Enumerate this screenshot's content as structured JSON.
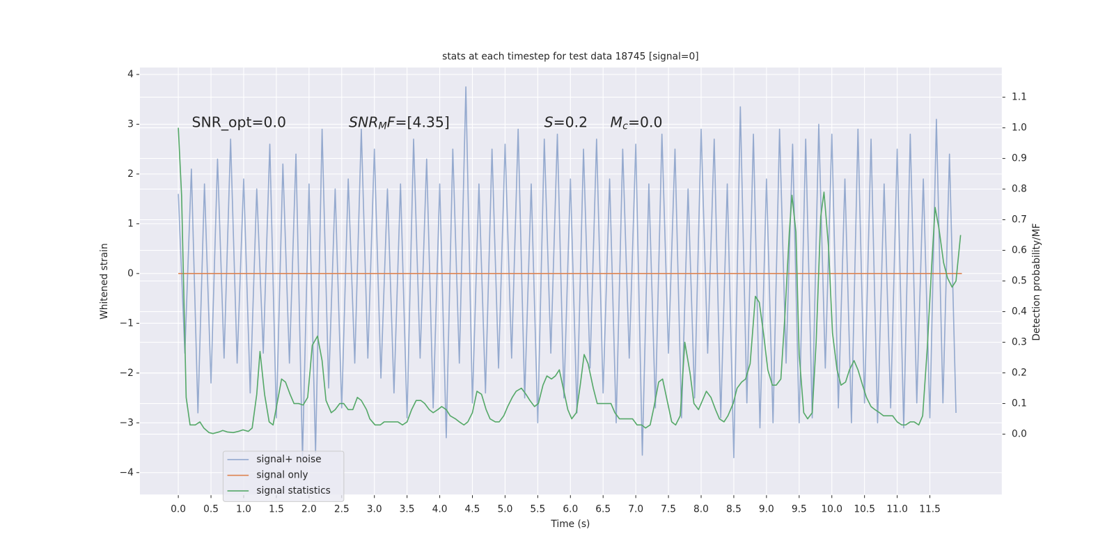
{
  "chart_data": {
    "type": "line",
    "title": "stats at each timestep for test data 18745 [signal=0]",
    "xlabel": "Time (s)",
    "ylabel": "Whitened strain",
    "y2label": "Detection probability/MF",
    "xlim": [
      -0.587,
      12.6
    ],
    "ylim": [
      -4.44,
      4.14
    ],
    "y2lim": [
      -0.197,
      1.197
    ],
    "xticks": [
      {
        "value": 0,
        "label": "0.0"
      },
      {
        "value": 0.5,
        "label": "0.5"
      },
      {
        "value": 1,
        "label": "1.0"
      },
      {
        "value": 1.5,
        "label": "1.5"
      },
      {
        "value": 2,
        "label": "2.0"
      },
      {
        "value": 2.5,
        "label": "2.5"
      },
      {
        "value": 3,
        "label": "3.0"
      },
      {
        "value": 3.5,
        "label": "3.5"
      },
      {
        "value": 4,
        "label": "4.0"
      },
      {
        "value": 4.5,
        "label": "4.5"
      },
      {
        "value": 5,
        "label": "5.0"
      },
      {
        "value": 5.5,
        "label": "5.5"
      },
      {
        "value": 6,
        "label": "6.0"
      },
      {
        "value": 6.5,
        "label": "6.5"
      },
      {
        "value": 7,
        "label": "7.0"
      },
      {
        "value": 7.5,
        "label": "7.5"
      },
      {
        "value": 8,
        "label": "8.0"
      },
      {
        "value": 8.5,
        "label": "8.5"
      },
      {
        "value": 9,
        "label": "9.0"
      },
      {
        "value": 9.5,
        "label": "9.5"
      },
      {
        "value": 10,
        "label": "10.0"
      },
      {
        "value": 10.5,
        "label": "10.5"
      },
      {
        "value": 11,
        "label": "11.0"
      },
      {
        "value": 11.5,
        "label": "11.5"
      }
    ],
    "yticks": [
      {
        "value": -4,
        "label": "−4"
      },
      {
        "value": -3,
        "label": "−3"
      },
      {
        "value": -2,
        "label": "−2"
      },
      {
        "value": -1,
        "label": "−1"
      },
      0,
      1,
      2,
      3,
      4
    ],
    "y2ticks": [
      {
        "value": 0,
        "label": "0.0"
      },
      {
        "value": 0.1,
        "label": "0.1"
      },
      {
        "value": 0.2,
        "label": "0.2"
      },
      {
        "value": 0.3,
        "label": "0.3"
      },
      {
        "value": 0.4,
        "label": "0.4"
      },
      {
        "value": 0.5,
        "label": "0.5"
      },
      {
        "value": 0.6,
        "label": "0.6"
      },
      {
        "value": 0.7,
        "label": "0.7"
      },
      {
        "value": 0.8,
        "label": "0.8"
      },
      {
        "value": 0.9,
        "label": "0.9"
      },
      {
        "value": 1,
        "label": "1.0"
      },
      {
        "value": 1.1,
        "label": "1.1"
      }
    ],
    "grid": true,
    "legend": "lower left",
    "annotations": [
      [
        {
          "text": "SNR_opt=0.0"
        }
      ],
      [
        {
          "text": "SNR",
          "style": "italic"
        },
        {
          "text": "M",
          "style": "italic-sub"
        },
        {
          "text": "F",
          "style": "italic"
        },
        {
          "text": "=[4.35]"
        }
      ],
      [
        {
          "text": "S",
          "style": "italic"
        },
        {
          "text": "=0.2"
        }
      ],
      [
        {
          "text": "M",
          "style": "italic"
        },
        {
          "text": "c",
          "style": "italic-sub"
        },
        {
          "text": "=0.0"
        }
      ]
    ],
    "series": [
      {
        "name": "signal+ noise",
        "color": "#4c72b0",
        "alpha": 0.55,
        "x": [
          0,
          0.1,
          0.2,
          0.3,
          0.4,
          0.5,
          0.6,
          0.7,
          0.8,
          0.9,
          1,
          1.1,
          1.2,
          1.3,
          1.4,
          1.5,
          1.6,
          1.7,
          1.8,
          1.9,
          2,
          2.1,
          2.2,
          2.3,
          2.4,
          2.5,
          2.6,
          2.7,
          2.8,
          2.9,
          3,
          3.1,
          3.2,
          3.3,
          3.4,
          3.5,
          3.6,
          3.7,
          3.8,
          3.9,
          4,
          4.1,
          4.2,
          4.3,
          4.4,
          4.5,
          4.6,
          4.7,
          4.8,
          4.9,
          5,
          5.1,
          5.2,
          5.3,
          5.4,
          5.5,
          5.6,
          5.7,
          5.8,
          5.9,
          6,
          6.1,
          6.2,
          6.3,
          6.4,
          6.5,
          6.6,
          6.7,
          6.8,
          6.9,
          7,
          7.1,
          7.2,
          7.3,
          7.4,
          7.5,
          7.6,
          7.7,
          7.8,
          7.9,
          8,
          8.1,
          8.2,
          8.3,
          8.4,
          8.5,
          8.6,
          8.7,
          8.8,
          8.9,
          9,
          9.1,
          9.2,
          9.3,
          9.4,
          9.5,
          9.6,
          9.7,
          9.8,
          9.9,
          10,
          10.1,
          10.2,
          10.3,
          10.4,
          10.5,
          10.6,
          10.7,
          10.8,
          10.9,
          11,
          11.1,
          11.2,
          11.3,
          11.4,
          11.5,
          11.6,
          11.7,
          11.8,
          11.9
        ],
        "values": [
          1.6,
          -1.6,
          2.1,
          -2.8,
          1.8,
          -2.2,
          2.3,
          -1.7,
          2.7,
          -1.8,
          1.9,
          -2.4,
          1.7,
          -1.6,
          2.6,
          -2.9,
          2.2,
          -1.8,
          2.4,
          -3.7,
          1.8,
          -3.6,
          2.9,
          -2.3,
          1.7,
          -2.7,
          1.9,
          -1.8,
          2.9,
          -1.7,
          2.5,
          -2.1,
          1.7,
          -2.4,
          1.8,
          -2.9,
          2.7,
          -1.7,
          2.3,
          -2.7,
          1.8,
          -3.3,
          2.5,
          -1.8,
          3.75,
          -2.6,
          1.8,
          -2.4,
          2.5,
          -1.9,
          2.6,
          -1.7,
          2.9,
          -2.5,
          1.8,
          -3.0,
          2.7,
          -1.6,
          2.8,
          -2.5,
          1.9,
          -2.8,
          2.5,
          -1.9,
          2.7,
          -2.4,
          1.9,
          -3.0,
          2.5,
          -1.7,
          2.6,
          -3.65,
          1.8,
          -2.7,
          2.8,
          -1.6,
          2.5,
          -2.9,
          1.7,
          -2.5,
          2.9,
          -1.6,
          2.7,
          -2.9,
          1.8,
          -3.7,
          3.35,
          -2.6,
          2.8,
          -3.1,
          1.9,
          -3.0,
          2.9,
          -1.8,
          2.6,
          -3.0,
          2.7,
          -2.9,
          3.0,
          -1.9,
          2.8,
          -2.7,
          1.9,
          -3.0,
          2.9,
          -2.6,
          2.7,
          -3.0,
          1.8,
          -2.7,
          2.5,
          -3.1,
          2.8,
          -2.6,
          1.9,
          -2.9,
          3.1,
          -2.6,
          2.4,
          -2.8
        ]
      },
      {
        "name": "signal only",
        "color": "#dd8452",
        "alpha": 1,
        "x": [
          0,
          11.99
        ],
        "values": [
          0,
          0
        ]
      },
      {
        "name": "signal statistics",
        "color": "#55a868",
        "alpha": 1,
        "axis": "y2",
        "x": [
          0,
          0.05,
          0.12,
          0.18,
          0.26,
          0.33,
          0.39,
          0.47,
          0.53,
          0.62,
          0.68,
          0.75,
          0.84,
          0.92,
          0.99,
          1.07,
          1.13,
          1.2,
          1.25,
          1.32,
          1.39,
          1.45,
          1.52,
          1.58,
          1.64,
          1.71,
          1.77,
          1.84,
          1.91,
          1.98,
          2.05,
          2.13,
          2.2,
          2.26,
          2.34,
          2.4,
          2.47,
          2.53,
          2.6,
          2.67,
          2.74,
          2.8,
          2.88,
          2.93,
          3.01,
          3.09,
          3.15,
          3.23,
          3.29,
          3.36,
          3.43,
          3.5,
          3.57,
          3.64,
          3.71,
          3.77,
          3.84,
          3.9,
          3.97,
          4.03,
          4.1,
          4.16,
          4.24,
          4.3,
          4.37,
          4.43,
          4.5,
          4.57,
          4.64,
          4.71,
          4.77,
          4.85,
          4.91,
          4.98,
          5.04,
          5.11,
          5.17,
          5.25,
          5.32,
          5.38,
          5.45,
          5.51,
          5.58,
          5.64,
          5.71,
          5.77,
          5.83,
          5.89,
          5.96,
          6.02,
          6.09,
          6.15,
          6.21,
          6.27,
          6.35,
          6.41,
          6.48,
          6.54,
          6.62,
          6.68,
          6.75,
          6.82,
          6.88,
          6.95,
          7.02,
          7.09,
          7.15,
          7.22,
          7.28,
          7.35,
          7.41,
          7.48,
          7.55,
          7.61,
          7.68,
          7.75,
          7.83,
          7.89,
          7.96,
          8.02,
          8.08,
          8.15,
          8.22,
          8.28,
          8.35,
          8.41,
          8.49,
          8.55,
          8.62,
          8.68,
          8.75,
          8.83,
          8.89,
          8.96,
          9.02,
          9.09,
          9.15,
          9.22,
          9.28,
          9.35,
          9.39,
          9.45,
          9.5,
          9.57,
          9.63,
          9.7,
          9.76,
          9.83,
          9.88,
          9.95,
          10.01,
          10.08,
          10.14,
          10.21,
          10.27,
          10.34,
          10.4,
          10.47,
          10.53,
          10.6,
          10.66,
          10.73,
          10.79,
          10.86,
          10.93,
          11,
          11.07,
          11.13,
          11.2,
          11.26,
          11.33,
          11.39,
          11.46,
          11.52,
          11.58,
          11.64,
          11.71,
          11.77,
          11.84,
          11.9,
          11.97
        ],
        "values": [
          1.0,
          0.78,
          0.12,
          0.03,
          0.03,
          0.04,
          0.02,
          0.005,
          0.002,
          0.007,
          0.012,
          0.007,
          0.005,
          0.009,
          0.014,
          0.009,
          0.02,
          0.13,
          0.27,
          0.13,
          0.04,
          0.03,
          0.11,
          0.18,
          0.17,
          0.13,
          0.1,
          0.1,
          0.095,
          0.12,
          0.29,
          0.32,
          0.24,
          0.11,
          0.07,
          0.08,
          0.1,
          0.1,
          0.08,
          0.08,
          0.12,
          0.11,
          0.08,
          0.05,
          0.03,
          0.03,
          0.04,
          0.04,
          0.04,
          0.04,
          0.03,
          0.04,
          0.08,
          0.11,
          0.11,
          0.1,
          0.08,
          0.07,
          0.08,
          0.09,
          0.08,
          0.06,
          0.05,
          0.04,
          0.03,
          0.04,
          0.07,
          0.14,
          0.13,
          0.08,
          0.05,
          0.04,
          0.04,
          0.06,
          0.09,
          0.12,
          0.14,
          0.15,
          0.13,
          0.11,
          0.09,
          0.1,
          0.16,
          0.19,
          0.18,
          0.19,
          0.21,
          0.15,
          0.08,
          0.05,
          0.07,
          0.16,
          0.26,
          0.23,
          0.15,
          0.1,
          0.1,
          0.1,
          0.1,
          0.07,
          0.05,
          0.05,
          0.05,
          0.05,
          0.03,
          0.03,
          0.02,
          0.03,
          0.09,
          0.17,
          0.18,
          0.11,
          0.04,
          0.03,
          0.06,
          0.3,
          0.2,
          0.1,
          0.08,
          0.11,
          0.14,
          0.12,
          0.08,
          0.05,
          0.04,
          0.06,
          0.1,
          0.15,
          0.17,
          0.18,
          0.23,
          0.45,
          0.43,
          0.32,
          0.21,
          0.16,
          0.16,
          0.18,
          0.38,
          0.66,
          0.78,
          0.66,
          0.26,
          0.07,
          0.05,
          0.07,
          0.3,
          0.71,
          0.79,
          0.61,
          0.33,
          0.21,
          0.16,
          0.17,
          0.21,
          0.24,
          0.21,
          0.16,
          0.12,
          0.09,
          0.08,
          0.07,
          0.06,
          0.06,
          0.06,
          0.04,
          0.03,
          0.03,
          0.04,
          0.04,
          0.03,
          0.06,
          0.28,
          0.52,
          0.74,
          0.67,
          0.56,
          0.51,
          0.48,
          0.5,
          0.65
        ]
      }
    ]
  }
}
